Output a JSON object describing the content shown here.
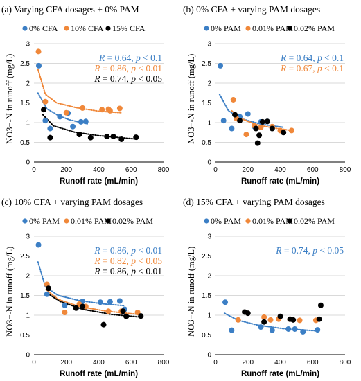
{
  "colors": {
    "s0": "#3c7fc5",
    "s1": "#f0883a",
    "s2": "#000000"
  },
  "chart_data": [
    {
      "type": "scatter",
      "title": "(a) Varying CFA dosages + 0% PAM",
      "xlabel": "Runoff rate (mL/min)",
      "ylabel": "NO3−-N in runoff (mg/L)",
      "xlim": [
        0,
        800
      ],
      "ylim": [
        0,
        3
      ],
      "xticks": [
        "0",
        "200",
        "400",
        "600",
        "800"
      ],
      "yticks": [
        "0",
        "0.5",
        "1",
        "1.5",
        "2",
        "2.5",
        "3"
      ],
      "grid": true,
      "legend": "top",
      "series": [
        {
          "name": "0% CFA",
          "color": "#3c7fc5",
          "points": [
            [
              30,
              2.44
            ],
            [
              70,
              1.05
            ],
            [
              100,
              0.85
            ],
            [
              160,
              1.15
            ],
            [
              210,
              1.24
            ],
            [
              240,
              0.9
            ],
            [
              290,
              1.02
            ],
            [
              320,
              1.03
            ]
          ],
          "trend": [
            [
              25,
              1.75
            ],
            [
              80,
              1.35
            ],
            [
              150,
              1.18
            ],
            [
              220,
              1.07
            ],
            [
              330,
              0.97
            ]
          ],
          "annotation": "R = 0.64, p < 0.1"
        },
        {
          "name": "10% CFA",
          "color": "#f0883a",
          "points": [
            [
              28,
              2.8
            ],
            [
              70,
              1.53
            ],
            [
              200,
              1.25
            ],
            [
              300,
              1.37
            ],
            [
              420,
              1.33
            ],
            [
              460,
              1.34
            ],
            [
              470,
              1.3
            ],
            [
              530,
              1.36
            ]
          ],
          "trend": [
            [
              25,
              2.35
            ],
            [
              70,
              1.72
            ],
            [
              140,
              1.5
            ],
            [
              260,
              1.38
            ],
            [
              400,
              1.29
            ],
            [
              540,
              1.25
            ]
          ],
          "annotation": "R = 0.86, p < 0.01"
        },
        {
          "name": "15% CFA",
          "color": "#000000",
          "points": [
            [
              60,
              1.33
            ],
            [
              100,
              0.62
            ],
            [
              280,
              0.7
            ],
            [
              350,
              0.62
            ],
            [
              450,
              0.65
            ],
            [
              490,
              0.65
            ],
            [
              540,
              0.58
            ],
            [
              630,
              0.63
            ]
          ],
          "trend": [
            [
              55,
              1.2
            ],
            [
              120,
              0.92
            ],
            [
              250,
              0.76
            ],
            [
              400,
              0.67
            ],
            [
              640,
              0.58
            ]
          ],
          "annotation": "R = 0.74, p < 0.05"
        }
      ]
    },
    {
      "type": "scatter",
      "title": "(b) 0% CFA + varying PAM dosages",
      "xlabel": "Runoff rate (mL/min)",
      "ylabel": "NO3−-N in runoff (mg/L)",
      "xlim": [
        0,
        800
      ],
      "ylim": [
        0,
        3
      ],
      "xticks": [
        "0",
        "200",
        "400",
        "600",
        "800"
      ],
      "yticks": [
        "0",
        "0.5",
        "1",
        "1.5",
        "2",
        "2.5",
        "3"
      ],
      "grid": true,
      "legend": "top",
      "series": [
        {
          "name": "0% PAM",
          "color": "#3c7fc5",
          "points": [
            [
              30,
              2.44
            ],
            [
              50,
              1.05
            ],
            [
              100,
              0.85
            ],
            [
              150,
              1.15
            ],
            [
              200,
              1.22
            ],
            [
              240,
              0.9
            ],
            [
              280,
              1.02
            ],
            [
              320,
              1.03
            ]
          ],
          "trend": [
            [
              25,
              1.72
            ],
            [
              80,
              1.3
            ],
            [
              160,
              1.1
            ],
            [
              280,
              0.96
            ],
            [
              420,
              0.88
            ]
          ],
          "annotation": "R = 0.64, p < 0.1"
        },
        {
          "name": "0.01% PAM",
          "color": "#f0883a",
          "points": [
            [
              110,
              1.58
            ],
            [
              130,
              1.1
            ],
            [
              190,
              0.7
            ],
            [
              240,
              0.92
            ],
            [
              280,
              0.88
            ],
            [
              350,
              0.9
            ],
            [
              400,
              0.8
            ],
            [
              470,
              0.8
            ]
          ],
          "trend": [
            [
              100,
              1.3
            ],
            [
              160,
              1.1
            ],
            [
              250,
              0.95
            ],
            [
              350,
              0.87
            ],
            [
              470,
              0.8
            ]
          ],
          "annotation": "R = 0.67, p < 0.1"
        },
        {
          "name": "0.02% PAM",
          "color": "#000000",
          "points": [
            [
              120,
              1.2
            ],
            [
              150,
              1.05
            ],
            [
              250,
              0.85
            ],
            [
              260,
              0.48
            ],
            [
              270,
              0.68
            ],
            [
              290,
              1.02
            ],
            [
              320,
              1.03
            ],
            [
              350,
              0.85
            ],
            [
              420,
              0.75
            ]
          ],
          "trend": [],
          "annotation": ""
        }
      ]
    },
    {
      "type": "scatter",
      "title": "(c) 10% CFA + varying PAM dosages",
      "xlabel": "Runoff rate (mL/min)",
      "ylabel": "NO3−-N in runoff (mg/L)",
      "xlim": [
        0,
        800
      ],
      "ylim": [
        0,
        3
      ],
      "xticks": [
        "0",
        "200",
        "400",
        "600",
        "800"
      ],
      "yticks": [
        "0",
        "0.5",
        "1",
        "1.5",
        "2",
        "2.5",
        "3"
      ],
      "grid": true,
      "legend": "top",
      "series": [
        {
          "name": "0% PAM",
          "color": "#3c7fc5",
          "points": [
            [
              28,
              2.78
            ],
            [
              80,
              1.53
            ],
            [
              190,
              1.25
            ],
            [
              300,
              1.35
            ],
            [
              410,
              1.33
            ],
            [
              470,
              1.34
            ],
            [
              530,
              1.36
            ],
            [
              560,
              1.15
            ]
          ],
          "trend": [
            [
              25,
              2.35
            ],
            [
              70,
              1.72
            ],
            [
              150,
              1.5
            ],
            [
              280,
              1.37
            ],
            [
              420,
              1.29
            ],
            [
              560,
              1.24
            ]
          ],
          "annotation": "R = 0.86, p < 0.01"
        },
        {
          "name": "0.01% PAM",
          "color": "#f0883a",
          "points": [
            [
              80,
              1.78
            ],
            [
              190,
              1.07
            ],
            [
              280,
              1.28
            ],
            [
              320,
              1.22
            ],
            [
              460,
              1.1
            ],
            [
              540,
              1.1
            ],
            [
              640,
              1.07
            ]
          ],
          "trend": [
            [
              75,
              1.65
            ],
            [
              150,
              1.4
            ],
            [
              280,
              1.22
            ],
            [
              450,
              1.1
            ],
            [
              650,
              1.02
            ]
          ],
          "annotation": "R = 0.82, p < 0.05"
        },
        {
          "name": "0.02% PAM",
          "color": "#000000",
          "points": [
            [
              90,
              1.68
            ],
            [
              260,
              1.18
            ],
            [
              300,
              1.22
            ],
            [
              430,
              0.76
            ],
            [
              550,
              1.1
            ],
            [
              570,
              0.97
            ],
            [
              660,
              0.98
            ]
          ],
          "trend": [
            [
              85,
              1.55
            ],
            [
              160,
              1.35
            ],
            [
              300,
              1.15
            ],
            [
              480,
              1.02
            ],
            [
              660,
              0.95
            ]
          ],
          "annotation": "R = 0.86, p < 0.01"
        }
      ]
    },
    {
      "type": "scatter",
      "title": "(d) 15% CFA + varying PAM dosages",
      "xlabel": "Runoff rate (mL/min)",
      "ylabel": "NO3−-N in runoff (mg/L)",
      "xlim": [
        0,
        800
      ],
      "ylim": [
        0,
        3
      ],
      "xticks": [
        "0",
        "200",
        "400",
        "600",
        "800"
      ],
      "yticks": [
        "0",
        "0.5",
        "1",
        "1.5",
        "2",
        "2.5",
        "3"
      ],
      "grid": true,
      "legend": "top",
      "series": [
        {
          "name": "0% PAM",
          "color": "#3c7fc5",
          "points": [
            [
              60,
              1.33
            ],
            [
              100,
              0.62
            ],
            [
              280,
              0.7
            ],
            [
              350,
              0.62
            ],
            [
              450,
              0.65
            ],
            [
              490,
              0.65
            ],
            [
              540,
              0.58
            ],
            [
              630,
              0.63
            ]
          ],
          "trend": [
            [
              55,
              1.05
            ],
            [
              140,
              0.87
            ],
            [
              260,
              0.75
            ],
            [
              420,
              0.66
            ],
            [
              640,
              0.6
            ]
          ],
          "annotation": "R = 0.74, p < 0.05"
        },
        {
          "name": "0.01% PAM",
          "color": "#f0883a",
          "points": [
            [
              140,
              0.88
            ],
            [
              300,
              0.95
            ],
            [
              340,
              0.88
            ],
            [
              390,
              0.9
            ],
            [
              460,
              0.9
            ],
            [
              520,
              0.87
            ],
            [
              620,
              0.87
            ]
          ],
          "trend": [],
          "annotation": ""
        },
        {
          "name": "0.02% PAM",
          "color": "#000000",
          "points": [
            [
              180,
              1.08
            ],
            [
              200,
              1.05
            ],
            [
              300,
              0.83
            ],
            [
              400,
              0.97
            ],
            [
              460,
              0.9
            ],
            [
              480,
              0.88
            ],
            [
              640,
              0.9
            ],
            [
              650,
              1.25
            ]
          ],
          "trend": [],
          "annotation": ""
        }
      ]
    }
  ]
}
